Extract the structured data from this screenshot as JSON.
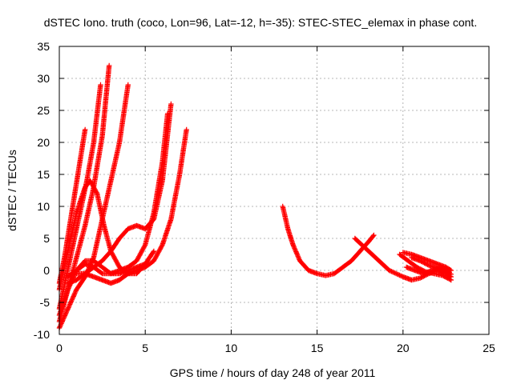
{
  "chart_data": {
    "type": "scatter",
    "title": "dSTEC Iono. truth (coco, Lon=96, Lat=-12, h=-35): STEC-STEC_elemax in phase cont.",
    "xlabel": "GPS time / hours of day 248 of year 2011",
    "ylabel": "dSTEC  / TECUs",
    "xlim": [
      0,
      25
    ],
    "ylim": [
      -10,
      35
    ],
    "xticks": [
      0,
      5,
      10,
      15,
      20,
      25
    ],
    "yticks": [
      -10,
      -5,
      0,
      5,
      10,
      15,
      20,
      25,
      30,
      35
    ],
    "grid": true,
    "marker": "plus",
    "color": "#ff0000",
    "series": [
      {
        "x": [
          0.0,
          0.3,
          0.6,
          0.9,
          1.2,
          1.5
        ],
        "y": [
          -2.0,
          2.0,
          7.0,
          12.0,
          17.0,
          22.0
        ]
      },
      {
        "x": [
          0.0,
          0.4,
          0.8,
          1.2,
          1.6,
          2.0,
          2.4
        ],
        "y": [
          -6.0,
          -1.0,
          4.0,
          9.0,
          14.0,
          20.0,
          29.0
        ]
      },
      {
        "x": [
          0.0,
          0.5,
          1.0,
          1.5,
          2.0,
          2.5,
          2.9
        ],
        "y": [
          -8.0,
          -3.0,
          2.0,
          7.0,
          13.0,
          21.0,
          32.0
        ]
      },
      {
        "x": [
          0.0,
          0.5,
          1.0,
          1.5,
          2.0,
          2.5,
          3.0,
          3.5,
          4.0
        ],
        "y": [
          -9.0,
          -6.0,
          -3.0,
          -1.0,
          2.0,
          8.0,
          14.0,
          20.0,
          29.0
        ]
      },
      {
        "x": [
          0.0,
          0.5,
          1.0,
          1.5,
          1.8,
          2.2,
          2.6,
          3.0,
          3.5,
          4.0,
          4.5,
          5.0
        ],
        "y": [
          -3.0,
          3.0,
          9.0,
          13.0,
          14.0,
          12.0,
          7.0,
          3.0,
          0.5,
          -0.5,
          -0.5,
          1.0
        ]
      },
      {
        "x": [
          0.0,
          0.5,
          1.0,
          1.5,
          2.0,
          2.5,
          3.0,
          3.5,
          4.0,
          4.5,
          5.0,
          5.5
        ],
        "y": [
          -7.0,
          -3.0,
          0.0,
          1.5,
          1.5,
          0.5,
          -0.5,
          -0.5,
          0.0,
          0.5,
          1.0,
          3.0
        ]
      },
      {
        "x": [
          0.5,
          1.0,
          1.5,
          2.0,
          2.5,
          3.0,
          3.5,
          4.0,
          4.5,
          5.0,
          5.5,
          6.0,
          6.3
        ],
        "y": [
          -1.0,
          0.0,
          1.0,
          0.5,
          -0.5,
          -0.5,
          0.0,
          0.5,
          1.5,
          4.0,
          9.0,
          17.0,
          24.5
        ]
      },
      {
        "x": [
          0.5,
          1.0,
          1.5,
          2.0,
          2.5,
          3.0,
          3.5,
          4.0,
          4.5,
          5.0,
          5.5,
          6.0,
          6.5
        ],
        "y": [
          -2.0,
          -1.5,
          -0.5,
          0.5,
          1.5,
          3.0,
          5.0,
          6.5,
          7.0,
          6.5,
          8.0,
          14.0,
          26.0
        ]
      },
      {
        "x": [
          1.0,
          1.5,
          2.0,
          2.5,
          3.0,
          3.5,
          4.0,
          4.5,
          5.0,
          5.5,
          6.0,
          6.5,
          7.0,
          7.4
        ],
        "y": [
          -0.5,
          -0.5,
          -1.0,
          -1.5,
          -2.0,
          -1.5,
          -0.5,
          0.0,
          0.5,
          1.5,
          4.0,
          8.0,
          15.0,
          22.0
        ]
      },
      {
        "x": [
          13.0,
          13.3,
          13.6,
          14.0,
          14.5,
          15.0,
          15.5,
          16.0,
          16.5,
          17.0,
          17.5,
          18.0,
          18.3
        ],
        "y": [
          10.0,
          6.5,
          4.0,
          1.5,
          0.0,
          -0.5,
          -0.8,
          -0.5,
          0.5,
          1.5,
          3.0,
          4.5,
          5.5
        ]
      },
      {
        "x": [
          17.2,
          17.6,
          18.0,
          18.4,
          18.8,
          19.2,
          19.6,
          20.0,
          20.5,
          21.0,
          21.5,
          22.0,
          22.5,
          22.8
        ],
        "y": [
          5.0,
          4.0,
          3.0,
          2.0,
          1.0,
          0.0,
          -0.5,
          -1.0,
          -1.5,
          -1.2,
          -0.5,
          0.0,
          -0.5,
          -1.0
        ]
      },
      {
        "x": [
          19.8,
          20.3,
          20.8,
          21.3,
          21.8,
          22.3,
          22.8
        ],
        "y": [
          2.5,
          1.5,
          0.5,
          -0.2,
          -0.5,
          -0.8,
          -1.5
        ]
      },
      {
        "x": [
          20.0,
          20.5,
          21.0,
          21.5,
          22.0,
          22.5,
          22.8
        ],
        "y": [
          2.8,
          2.5,
          2.0,
          1.5,
          1.0,
          0.5,
          0.0
        ]
      },
      {
        "x": [
          20.2,
          20.7,
          21.2,
          21.7,
          22.2,
          22.7
        ],
        "y": [
          0.5,
          0.0,
          -0.5,
          0.0,
          0.5,
          -0.3
        ]
      },
      {
        "x": [
          20.5,
          21.0,
          21.5,
          22.0,
          22.5,
          22.8
        ],
        "y": [
          2.0,
          1.5,
          0.8,
          0.3,
          -0.2,
          -0.6
        ]
      }
    ]
  }
}
